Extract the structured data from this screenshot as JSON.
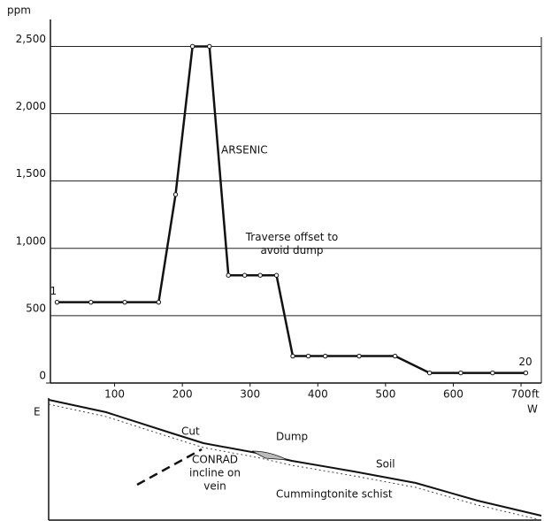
{
  "chart_data": {
    "type": "line",
    "y_unit": "ppm",
    "x_unit": "ft",
    "x_direction": "W",
    "x": [
      15,
      65,
      115,
      165,
      190,
      215,
      240,
      268,
      292,
      315,
      339,
      363,
      386,
      411,
      461,
      514,
      565,
      611,
      658,
      707
    ],
    "series": [
      {
        "name": "ARSENIC",
        "color": "#111111",
        "values": [
          600,
          600,
          600,
          600,
          1400,
          2500,
          2500,
          800,
          800,
          800,
          800,
          200,
          200,
          200,
          200,
          200,
          75,
          75,
          75,
          75
        ]
      }
    ],
    "point_labels": [
      "1",
      "20"
    ],
    "annotation": "Traverse offset to avoid dump",
    "xlim": [
      0,
      730
    ],
    "xticks": [
      100,
      200,
      300,
      400,
      500,
      600,
      700
    ],
    "ylim": [
      0,
      2700
    ],
    "yticks": [
      0,
      500,
      {
        "value": 1000,
        "label": "1,000"
      },
      {
        "value": 1500,
        "label": "1,500"
      },
      {
        "value": 2000,
        "label": "2,000"
      },
      {
        "value": 2500,
        "label": "2,500"
      }
    ],
    "grid": true
  },
  "cross_section": {
    "direction": "E",
    "labels": [
      "Cut",
      "Dump",
      "CONRAD",
      "incline on",
      "vein",
      "Soil",
      "Cummingtonite schist"
    ]
  }
}
